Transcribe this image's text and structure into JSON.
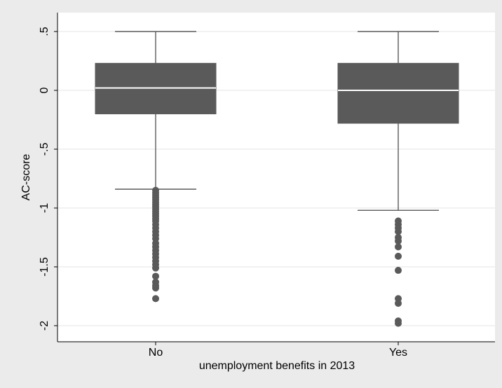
{
  "chart_data": {
    "type": "box",
    "title": "",
    "xlabel": "unemployment benefits in 2013",
    "ylabel": "AC-score",
    "ylim": [
      -2.1,
      0.55
    ],
    "y_ticks": [
      ".5",
      "0",
      "-.5",
      "-1",
      "-1.5",
      "-2"
    ],
    "y_tick_values": [
      0.5,
      0,
      -0.5,
      -1,
      -1.5,
      -2
    ],
    "grid": true,
    "legend": "none",
    "colors": {
      "box": "#5a5a5a",
      "median": "#ffffff",
      "whisker": "#5a5a5a",
      "grid": "#e6e6e6",
      "plot_bg": "#ffffff",
      "outer_bg": "#ebebeb"
    },
    "categories": [
      "No",
      "Yes"
    ],
    "boxes": [
      {
        "category": "No",
        "whisker_high": 0.5,
        "q3": 0.23,
        "median": 0.02,
        "q1": -0.2,
        "whisker_low": -0.84,
        "outliers": [
          -0.85,
          -0.87,
          -0.89,
          -0.91,
          -0.93,
          -0.95,
          -0.97,
          -0.99,
          -1.01,
          -1.03,
          -1.05,
          -1.07,
          -1.09,
          -1.11,
          -1.14,
          -1.17,
          -1.2,
          -1.23,
          -1.26,
          -1.3,
          -1.33,
          -1.36,
          -1.39,
          -1.42,
          -1.45,
          -1.48,
          -1.51,
          -1.58,
          -1.63,
          -1.66,
          -1.68,
          -1.77
        ]
      },
      {
        "category": "Yes",
        "whisker_high": 0.5,
        "q3": 0.23,
        "median": 0.0,
        "q1": -0.28,
        "whisker_low": -1.02,
        "outliers": [
          -1.11,
          -1.14,
          -1.17,
          -1.2,
          -1.25,
          -1.28,
          -1.33,
          -1.41,
          -1.53,
          -1.77,
          -1.81,
          -1.96,
          -1.98
        ]
      }
    ]
  }
}
